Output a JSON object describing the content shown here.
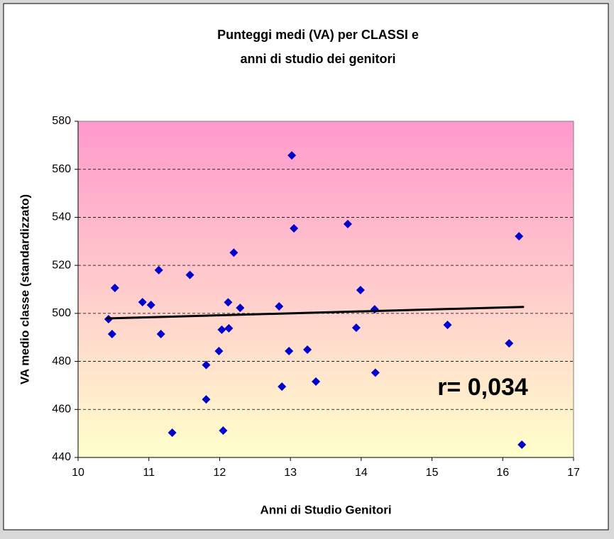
{
  "chart_data": {
    "type": "scatter",
    "title": [
      "Punteggi medi (VA) per CLASSI e",
      "anni di studio dei genitori"
    ],
    "x_label": "Anni di Studio Genitori",
    "y_label": "VA medio classe (standardizzato)",
    "annotation": "r= 0,034",
    "xlim": [
      10,
      17
    ],
    "xticks": [
      10,
      11,
      12,
      13,
      14,
      15,
      16,
      17
    ],
    "ylim": [
      440,
      580
    ],
    "yticks": [
      440,
      460,
      480,
      500,
      520,
      540,
      560,
      580
    ],
    "grid": true,
    "series": [
      {
        "color": "#0000cc",
        "x": [
          10.43,
          10.48,
          10.52,
          10.91,
          11.03,
          11.14,
          11.17,
          11.33,
          11.58,
          11.81,
          11.81,
          11.99,
          12.03,
          12.05,
          12.12,
          12.13,
          12.2,
          12.29,
          12.84,
          12.88,
          12.98,
          13.02,
          13.05,
          13.24,
          13.36,
          13.81,
          13.93,
          13.99,
          14.19,
          14.2,
          15.22,
          16.09,
          16.23,
          16.27
        ],
        "values": [
          497.6,
          491.4,
          510.6,
          504.7,
          503.5,
          518,
          491.4,
          450.3,
          516,
          478.5,
          464.2,
          484.3,
          493.2,
          451.2,
          504.6,
          493.8,
          525.3,
          502.3,
          502.9,
          469.5,
          484.3,
          565.8,
          535.4,
          484.9,
          471.6,
          537.2,
          494,
          509.7,
          501.7,
          475.3,
          495.2,
          487.5,
          532.1,
          445.3
        ]
      },
      {
        "color": "#000000",
        "line": true,
        "x": [
          10.4,
          16.3
        ],
        "values": [
          497.9,
          502.7
        ]
      }
    ]
  }
}
